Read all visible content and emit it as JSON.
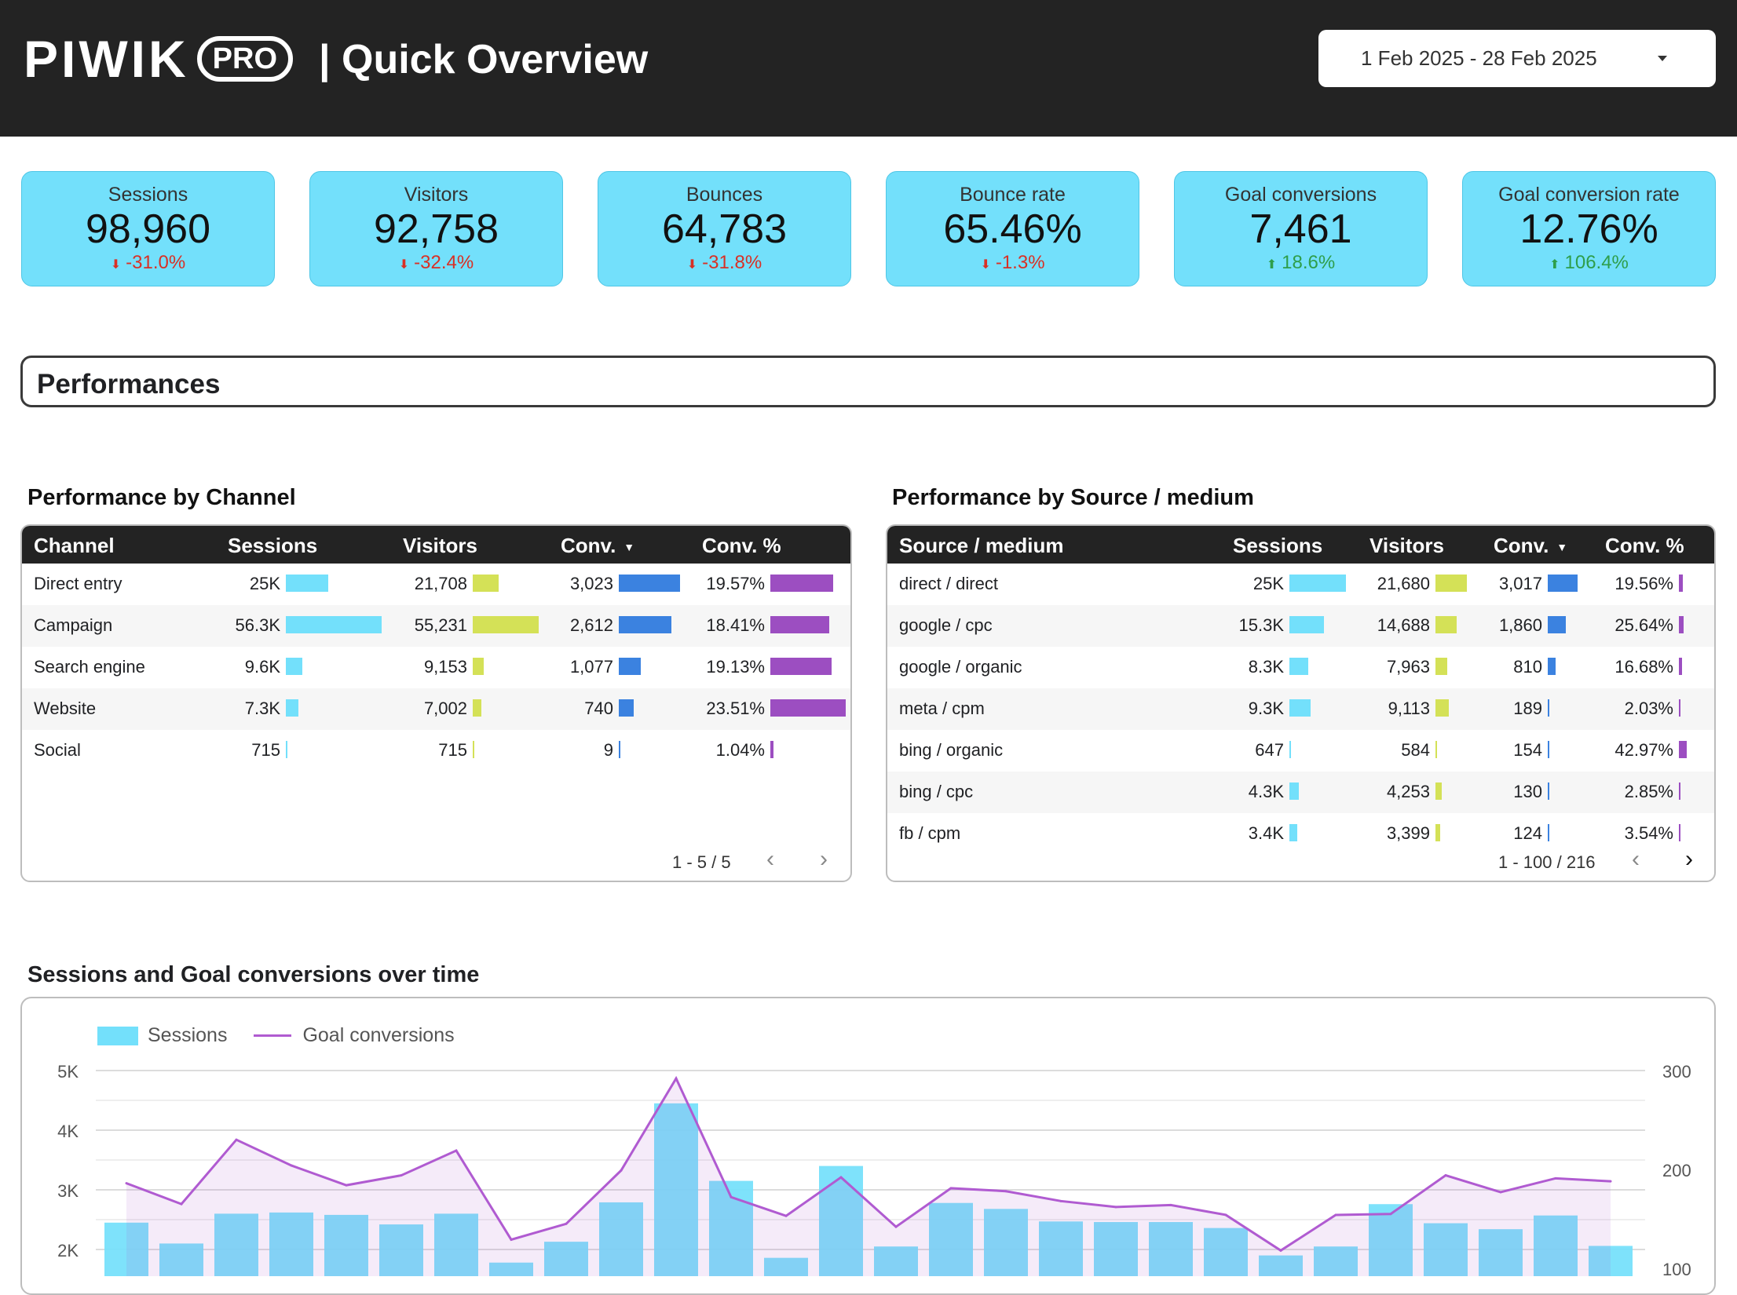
{
  "header": {
    "logo_word": "PIWIK",
    "logo_badge": "PRO",
    "title": "| Quick Overview",
    "date_range": "1 Feb 2025 - 28 Feb 2025"
  },
  "kpis": [
    {
      "label": "Sessions",
      "value": "98,960",
      "delta": "-31.0%",
      "direction": "down"
    },
    {
      "label": "Visitors",
      "value": "92,758",
      "delta": "-32.4%",
      "direction": "down"
    },
    {
      "label": "Bounces",
      "value": "64,783",
      "delta": "-31.8%",
      "direction": "down"
    },
    {
      "label": "Bounce rate",
      "value": "65.46%",
      "delta": "-1.3%",
      "direction": "down"
    },
    {
      "label": "Goal conversions",
      "value": "7,461",
      "delta": "18.6%",
      "direction": "up"
    },
    {
      "label": "Goal conversion rate",
      "value": "12.76%",
      "delta": "106.4%",
      "direction": "up"
    }
  ],
  "section": {
    "title": "Performances"
  },
  "channel_table": {
    "title": "Performance by Channel",
    "columns": [
      "Channel",
      "Sessions",
      "Visitors",
      "Conv.",
      "Conv. %"
    ],
    "sort_indicator": "▼",
    "rows": [
      {
        "name": "Direct entry",
        "sessions": "25K",
        "visitors": "21,708",
        "conv": "3,023",
        "conv_pct": "19.57%",
        "s": 25000,
        "v": 21708,
        "c": 3023,
        "p": 19.57
      },
      {
        "name": "Campaign",
        "sessions": "56.3K",
        "visitors": "55,231",
        "conv": "2,612",
        "conv_pct": "18.41%",
        "s": 56300,
        "v": 55231,
        "c": 2612,
        "p": 18.41
      },
      {
        "name": "Search engine",
        "sessions": "9.6K",
        "visitors": "9,153",
        "conv": "1,077",
        "conv_pct": "19.13%",
        "s": 9600,
        "v": 9153,
        "c": 1077,
        "p": 19.13
      },
      {
        "name": "Website",
        "sessions": "7.3K",
        "visitors": "7,002",
        "conv": "740",
        "conv_pct": "23.51%",
        "s": 7300,
        "v": 7002,
        "c": 740,
        "p": 23.51
      },
      {
        "name": "Social",
        "sessions": "715",
        "visitors": "715",
        "conv": "9",
        "conv_pct": "1.04%",
        "s": 715,
        "v": 715,
        "c": 9,
        "p": 1.04
      }
    ],
    "pager": "1 - 5 / 5"
  },
  "source_table": {
    "title": "Performance by Source / medium",
    "columns": [
      "Source / medium",
      "Sessions",
      "Visitors",
      "Conv.",
      "Conv. %"
    ],
    "sort_indicator": "▼",
    "rows": [
      {
        "name": "direct / direct",
        "sessions": "25K",
        "visitors": "21,680",
        "conv": "3,017",
        "conv_pct": "19.56%",
        "s": 25000,
        "v": 21680,
        "c": 3017,
        "p": 19.56
      },
      {
        "name": "google / cpc",
        "sessions": "15.3K",
        "visitors": "14,688",
        "conv": "1,860",
        "conv_pct": "25.64%",
        "s": 15300,
        "v": 14688,
        "c": 1860,
        "p": 25.64
      },
      {
        "name": "google / organic",
        "sessions": "8.3K",
        "visitors": "7,963",
        "conv": "810",
        "conv_pct": "16.68%",
        "s": 8300,
        "v": 7963,
        "c": 810,
        "p": 16.68
      },
      {
        "name": "meta / cpm",
        "sessions": "9.3K",
        "visitors": "9,113",
        "conv": "189",
        "conv_pct": "2.03%",
        "s": 9300,
        "v": 9113,
        "c": 189,
        "p": 2.03
      },
      {
        "name": "bing / organic",
        "sessions": "647",
        "visitors": "584",
        "conv": "154",
        "conv_pct": "42.97%",
        "s": 647,
        "v": 584,
        "c": 154,
        "p": 42.97
      },
      {
        "name": "bing / cpc",
        "sessions": "4.3K",
        "visitors": "4,253",
        "conv": "130",
        "conv_pct": "2.85%",
        "s": 4300,
        "v": 4253,
        "c": 130,
        "p": 2.85
      },
      {
        "name": "fb / cpm",
        "sessions": "3.4K",
        "visitors": "3,399",
        "conv": "124",
        "conv_pct": "3.54%",
        "s": 3400,
        "v": 3399,
        "c": 124,
        "p": 3.54
      }
    ],
    "pager": "1 - 100 / 216"
  },
  "colors": {
    "sessions": "#73e0fb",
    "visitors": "#d4e157",
    "conv": "#3b82e0",
    "conv_pct": "#9c4ec1",
    "goal_line": "#b05bd1",
    "delta_down": "#d93025",
    "delta_up": "#2e9e4a"
  },
  "chart": {
    "title": "Sessions and Goal conversions over time"
  },
  "chart_data": {
    "type": "bar",
    "legend": [
      "Sessions",
      "Goal conversions"
    ],
    "legend_position": "top-left",
    "grid": true,
    "y_left_ticks": [
      "5K",
      "4K",
      "3K",
      "2K"
    ],
    "y_right_ticks": [
      "300",
      "200",
      "100"
    ],
    "y_left_range": [
      0,
      5000
    ],
    "y_right_range": [
      0,
      300
    ],
    "series": [
      {
        "name": "Sessions",
        "kind": "bar",
        "axis": "left",
        "values": [
          2450,
          2100,
          2600,
          2620,
          2580,
          2420,
          2600,
          1780,
          2130,
          2790,
          4450,
          3150,
          1860,
          3400,
          2050,
          2780,
          2680,
          2470,
          2460,
          2460,
          2360,
          1900,
          2050,
          2760,
          2440,
          2340,
          2570,
          2060
        ]
      },
      {
        "name": "Goal conversions",
        "kind": "line",
        "axis": "right",
        "values": [
          186,
          165,
          230,
          204,
          184,
          194,
          219,
          129,
          145,
          199,
          292,
          172,
          153,
          192,
          142,
          181,
          178,
          168,
          162,
          164,
          154,
          118,
          154,
          155,
          194,
          177,
          191,
          188
        ]
      }
    ]
  }
}
